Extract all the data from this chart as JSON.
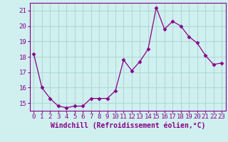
{
  "x": [
    0,
    1,
    2,
    3,
    4,
    5,
    6,
    7,
    8,
    9,
    10,
    11,
    12,
    13,
    14,
    15,
    16,
    17,
    18,
    19,
    20,
    21,
    22,
    23
  ],
  "y": [
    18.2,
    16.0,
    15.3,
    14.8,
    14.7,
    14.8,
    14.8,
    15.3,
    15.3,
    15.3,
    15.8,
    17.8,
    17.1,
    17.7,
    18.5,
    21.2,
    19.8,
    20.3,
    20.0,
    19.3,
    18.9,
    18.1,
    17.5,
    17.6
  ],
  "line_color": "#880088",
  "marker": "D",
  "marker_size": 2.5,
  "background_color": "#d0f0f0",
  "grid_color": "#b0d8d8",
  "xlabel": "Windchill (Refroidissement éolien,°C)",
  "ylim": [
    14.5,
    21.5
  ],
  "xlim": [
    -0.5,
    23.5
  ],
  "yticks": [
    15,
    16,
    17,
    18,
    19,
    20,
    21
  ],
  "xticks": [
    0,
    1,
    2,
    3,
    4,
    5,
    6,
    7,
    8,
    9,
    10,
    11,
    12,
    13,
    14,
    15,
    16,
    17,
    18,
    19,
    20,
    21,
    22,
    23
  ],
  "tick_fontsize": 6.5,
  "xlabel_fontsize": 7
}
